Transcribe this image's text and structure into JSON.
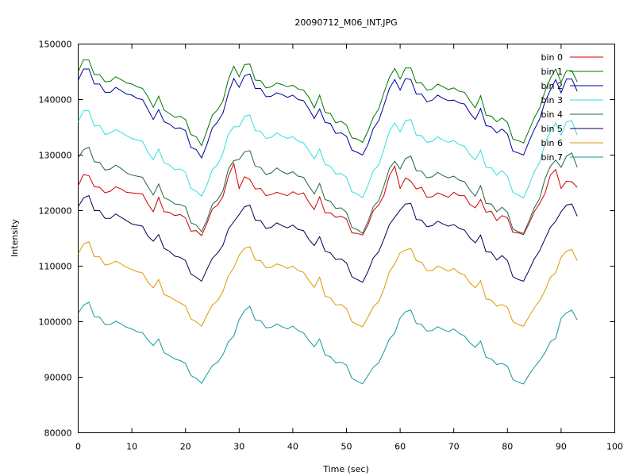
{
  "chart_data": {
    "type": "line",
    "title": "20090712_M06_INT.JPG",
    "xlabel": "Time (sec)",
    "ylabel": "Intensity",
    "xlim": [
      0,
      100
    ],
    "ylim": [
      80000,
      150000
    ],
    "xticks": [
      0,
      10,
      20,
      30,
      40,
      50,
      60,
      70,
      80,
      90,
      100
    ],
    "yticks": [
      80000,
      90000,
      100000,
      110000,
      120000,
      130000,
      140000,
      150000
    ],
    "grid": false,
    "legend_position": "top-right",
    "x": [
      0,
      1,
      2,
      3,
      4,
      5,
      6,
      7,
      8,
      9,
      10,
      11,
      12,
      13,
      14,
      15,
      16,
      17,
      18,
      19,
      20,
      21,
      22,
      23,
      24,
      25,
      26,
      27,
      28,
      29,
      30,
      31,
      32,
      33,
      34,
      35,
      36,
      37,
      38,
      39,
      40,
      41,
      42,
      43,
      44,
      45,
      46,
      47,
      48,
      49,
      50,
      51,
      52,
      53,
      54,
      55,
      56,
      57,
      58,
      59,
      60,
      61,
      62,
      63,
      64,
      65,
      66,
      67,
      68,
      69,
      70,
      71,
      72,
      73,
      74,
      75,
      76,
      77,
      78,
      79,
      80,
      81,
      82,
      83,
      84,
      85,
      86,
      87,
      88,
      89,
      90,
      91,
      92,
      93
    ],
    "series": [
      {
        "name": "bin 0",
        "color": "#cc0000",
        "values": [
          124500,
          126500,
          126300,
          124300,
          124200,
          123200,
          123500,
          124300,
          123900,
          123300,
          123200,
          123100,
          123000,
          121200,
          119800,
          122400,
          119800,
          119700,
          119100,
          119300,
          118700,
          116300,
          116400,
          115500,
          117700,
          120300,
          121000,
          122600,
          126200,
          128500,
          124000,
          126100,
          125600,
          123900,
          124000,
          122700,
          122900,
          123300,
          123000,
          122700,
          123400,
          122900,
          123200,
          121500,
          120200,
          122500,
          119600,
          119600,
          118800,
          119000,
          118500,
          116000,
          115900,
          115600,
          117400,
          120000,
          121000,
          122800,
          126300,
          128000,
          124000,
          125900,
          125300,
          123900,
          124200,
          122400,
          122500,
          123200,
          122800,
          122400,
          123300,
          122700,
          122700,
          121100,
          120500,
          122000,
          119700,
          119900,
          118200,
          119100,
          118700,
          116100,
          116000,
          115700,
          117600,
          119800,
          121300,
          123100,
          126400,
          127400,
          124000,
          125300,
          125200,
          124200
        ]
      },
      {
        "name": "bin 1",
        "color": "#007700",
        "values": [
          145000,
          147200,
          147100,
          144500,
          144500,
          143200,
          143300,
          144100,
          143600,
          143000,
          142800,
          142300,
          142000,
          140500,
          138600,
          140600,
          138100,
          137500,
          136800,
          137000,
          136400,
          133700,
          133300,
          131700,
          134400,
          137200,
          138200,
          139800,
          143700,
          146000,
          144100,
          146300,
          146400,
          143500,
          143400,
          142100,
          142300,
          143000,
          142700,
          142300,
          142600,
          141900,
          141700,
          140400,
          138500,
          140800,
          137700,
          137500,
          135800,
          136100,
          135400,
          133100,
          132900,
          132300,
          134300,
          136800,
          138300,
          141300,
          144000,
          145600,
          143700,
          145700,
          145700,
          143000,
          143000,
          141700,
          141900,
          142800,
          142300,
          141800,
          142100,
          141500,
          141300,
          139800,
          138500,
          140700,
          137200,
          137000,
          136000,
          136700,
          135900,
          132900,
          132600,
          132200,
          134400,
          136700,
          138500,
          141500,
          143800,
          145500,
          143100,
          145200,
          145200,
          143200
        ]
      },
      {
        "name": "bin 2",
        "color": "#000099",
        "values": [
          143500,
          145500,
          145500,
          142800,
          142800,
          141300,
          141300,
          142200,
          141600,
          141000,
          140800,
          140200,
          140000,
          138200,
          136400,
          138200,
          136000,
          135600,
          134800,
          134900,
          134400,
          131400,
          131000,
          129500,
          131900,
          134900,
          136000,
          137600,
          141200,
          143800,
          142200,
          144300,
          144600,
          142000,
          142000,
          140500,
          140600,
          141200,
          140900,
          140400,
          140800,
          140000,
          139800,
          138300,
          136600,
          138300,
          135900,
          135700,
          133900,
          134000,
          133400,
          130900,
          130500,
          130000,
          131900,
          134800,
          136200,
          139000,
          142000,
          143600,
          141700,
          143800,
          143600,
          141000,
          141000,
          139600,
          139900,
          140800,
          140200,
          139800,
          139900,
          139400,
          139200,
          137600,
          136400,
          138400,
          135300,
          135100,
          134000,
          134700,
          133800,
          130700,
          130400,
          130000,
          132400,
          134600,
          136500,
          139600,
          141700,
          143600,
          141200,
          143700,
          143700,
          141500
        ]
      },
      {
        "name": "bin 3",
        "color": "#33dddd",
        "values": [
          136000,
          138000,
          138000,
          135200,
          135400,
          133700,
          134000,
          134600,
          134100,
          133500,
          133000,
          132700,
          132500,
          130500,
          129200,
          131100,
          128600,
          128200,
          127400,
          127500,
          126900,
          124000,
          123500,
          122600,
          124600,
          127400,
          128300,
          130400,
          133800,
          135100,
          135100,
          137000,
          137200,
          134400,
          134300,
          133000,
          133200,
          134000,
          133400,
          133000,
          133300,
          132500,
          132200,
          130800,
          129300,
          131100,
          128300,
          128000,
          126600,
          126700,
          126000,
          123400,
          123000,
          122300,
          124500,
          127200,
          128200,
          131100,
          134300,
          135800,
          134200,
          136200,
          136400,
          133600,
          133500,
          132300,
          132500,
          133300,
          132700,
          132300,
          132600,
          131900,
          131600,
          130100,
          129100,
          130900,
          127800,
          127700,
          126400,
          127200,
          126200,
          123300,
          122800,
          122300,
          124500,
          127000,
          128700,
          132100,
          134300,
          135800,
          133600,
          136000,
          136200,
          133600
        ]
      },
      {
        "name": "bin 4",
        "color": "#226644",
        "values": [
          129500,
          131000,
          131400,
          128800,
          128700,
          127300,
          127500,
          128200,
          127600,
          126800,
          126400,
          126200,
          126000,
          124300,
          122800,
          124800,
          122300,
          121900,
          121200,
          121100,
          120700,
          117800,
          117400,
          116200,
          118300,
          121100,
          122000,
          123600,
          127500,
          129000,
          129200,
          130600,
          130800,
          128000,
          127800,
          126500,
          126800,
          127700,
          127000,
          126600,
          127000,
          126200,
          126000,
          124400,
          123000,
          124900,
          122000,
          121700,
          120400,
          120500,
          119700,
          117000,
          116600,
          115900,
          118000,
          120700,
          121800,
          124500,
          127600,
          128900,
          127500,
          129400,
          129800,
          127200,
          127100,
          125900,
          126100,
          126900,
          126300,
          125900,
          126200,
          125500,
          125200,
          123700,
          122600,
          124500,
          121300,
          121200,
          119800,
          120600,
          119700,
          116700,
          116200,
          115900,
          118100,
          120500,
          122200,
          125700,
          128000,
          129100,
          127800,
          129800,
          130400,
          127800
        ]
      },
      {
        "name": "bin 5",
        "color": "#000055",
        "values": [
          120700,
          122300,
          122700,
          120000,
          120000,
          118600,
          118600,
          119400,
          118800,
          118200,
          117600,
          117400,
          117200,
          115400,
          114500,
          115700,
          113200,
          112700,
          111800,
          111600,
          111000,
          108600,
          108000,
          107300,
          109400,
          111400,
          112400,
          113800,
          116700,
          118000,
          119300,
          120700,
          121000,
          118300,
          118200,
          116800,
          117000,
          117800,
          117300,
          116900,
          117400,
          116600,
          116400,
          114800,
          113700,
          115300,
          112700,
          112400,
          111200,
          111300,
          110600,
          108100,
          107600,
          107100,
          109000,
          111500,
          112600,
          114900,
          117500,
          118800,
          120100,
          121200,
          121300,
          118400,
          118300,
          117100,
          117300,
          118100,
          117600,
          117200,
          117500,
          116800,
          116500,
          115100,
          114200,
          115600,
          112600,
          112500,
          111100,
          111900,
          111000,
          108100,
          107600,
          107300,
          109200,
          111300,
          112800,
          114900,
          117000,
          118100,
          119800,
          121000,
          121200,
          119000
        ]
      },
      {
        "name": "bin 6",
        "color": "#dd9900",
        "values": [
          112200,
          114000,
          114400,
          111700,
          111700,
          110200,
          110400,
          110900,
          110400,
          109800,
          109400,
          109000,
          108800,
          107100,
          106100,
          107600,
          104900,
          104500,
          103900,
          103400,
          102800,
          100500,
          100000,
          99200,
          101200,
          103000,
          103800,
          105500,
          108300,
          109700,
          112000,
          113200,
          113500,
          111100,
          111000,
          109700,
          109800,
          110400,
          110100,
          109600,
          110000,
          109200,
          108900,
          107400,
          106200,
          108000,
          104600,
          104300,
          103000,
          103100,
          102400,
          100000,
          99500,
          99100,
          100800,
          102700,
          103600,
          105900,
          109000,
          110400,
          112400,
          112900,
          113200,
          111000,
          110700,
          109200,
          109200,
          110000,
          109600,
          109100,
          109600,
          108800,
          108400,
          107000,
          106100,
          107400,
          104100,
          103900,
          102800,
          103100,
          102600,
          100000,
          99500,
          99200,
          100900,
          102500,
          103800,
          105600,
          108000,
          108800,
          111600,
          112700,
          113000,
          111000
        ]
      },
      {
        "name": "bin 7",
        "color": "#119999",
        "values": [
          101500,
          103000,
          103500,
          100900,
          100800,
          99500,
          99500,
          100100,
          99600,
          99000,
          98700,
          98200,
          98000,
          96700,
          95700,
          96900,
          94400,
          93900,
          93300,
          93000,
          92500,
          90300,
          89800,
          88900,
          90500,
          92100,
          92700,
          94100,
          96400,
          97400,
          100400,
          102000,
          102800,
          100300,
          100200,
          98900,
          99000,
          99600,
          99100,
          98700,
          99200,
          98400,
          98000,
          96600,
          95500,
          96900,
          94000,
          93700,
          92600,
          92700,
          92200,
          89800,
          89300,
          88800,
          90300,
          91800,
          92600,
          94600,
          96900,
          97900,
          100700,
          101800,
          102100,
          99700,
          99500,
          98300,
          98400,
          99100,
          98600,
          98200,
          98700,
          97900,
          97400,
          96200,
          95400,
          96500,
          93600,
          93300,
          92300,
          92500,
          92000,
          89600,
          89100,
          88800,
          90400,
          91800,
          93000,
          94400,
          96400,
          97000,
          100600,
          101600,
          102100,
          100300
        ]
      }
    ]
  }
}
